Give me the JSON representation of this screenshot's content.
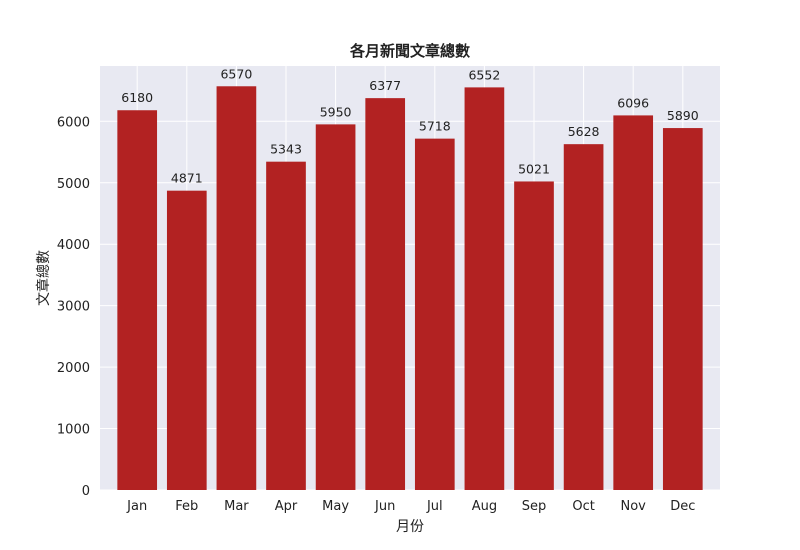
{
  "chart_data": {
    "type": "bar",
    "title": "各月新聞文章總數",
    "xlabel": "月份",
    "ylabel": "文章總數",
    "categories": [
      "Jan",
      "Feb",
      "Mar",
      "Apr",
      "May",
      "Jun",
      "Jul",
      "Aug",
      "Sep",
      "Oct",
      "Nov",
      "Dec"
    ],
    "values": [
      6180,
      4871,
      6570,
      5343,
      5950,
      6377,
      5718,
      6552,
      5021,
      5628,
      6096,
      5890
    ],
    "ylim": [
      0,
      6900
    ],
    "yticks": [
      0,
      1000,
      2000,
      3000,
      4000,
      5000,
      6000
    ],
    "grid": true,
    "bar_color": "#b22222",
    "plot_background": "#e8e9f2",
    "grid_color": "#ffffff"
  }
}
